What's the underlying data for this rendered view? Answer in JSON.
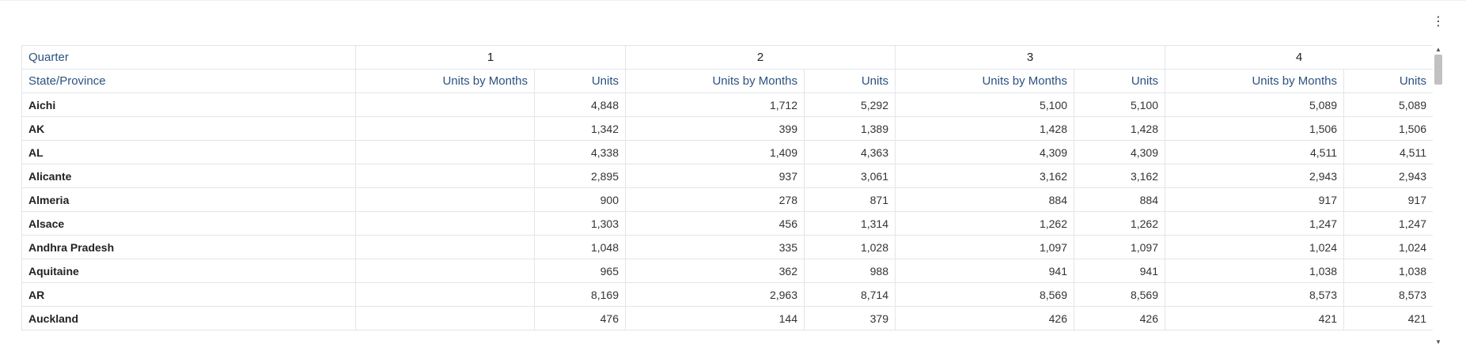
{
  "menu": {
    "icon": "more-vert-icon",
    "glyph": "⋮"
  },
  "table": {
    "row_header_label": "Quarter",
    "state_header_label": "State/Province",
    "quarters": [
      "1",
      "2",
      "3",
      "4"
    ],
    "sub_columns": [
      "Units by Months",
      "Units"
    ],
    "rows": [
      {
        "state": "Aichi",
        "values": [
          "",
          "4,848",
          "1,712",
          "5,292",
          "5,100",
          "5,100",
          "5,089",
          "5,089"
        ]
      },
      {
        "state": "AK",
        "values": [
          "",
          "1,342",
          "399",
          "1,389",
          "1,428",
          "1,428",
          "1,506",
          "1,506"
        ]
      },
      {
        "state": "AL",
        "values": [
          "",
          "4,338",
          "1,409",
          "4,363",
          "4,309",
          "4,309",
          "4,511",
          "4,511"
        ]
      },
      {
        "state": "Alicante",
        "values": [
          "",
          "2,895",
          "937",
          "3,061",
          "3,162",
          "3,162",
          "2,943",
          "2,943"
        ]
      },
      {
        "state": "Almeria",
        "values": [
          "",
          "900",
          "278",
          "871",
          "884",
          "884",
          "917",
          "917"
        ]
      },
      {
        "state": "Alsace",
        "values": [
          "",
          "1,303",
          "456",
          "1,314",
          "1,262",
          "1,262",
          "1,247",
          "1,247"
        ]
      },
      {
        "state": "Andhra Pradesh",
        "values": [
          "",
          "1,048",
          "335",
          "1,028",
          "1,097",
          "1,097",
          "1,024",
          "1,024"
        ]
      },
      {
        "state": "Aquitaine",
        "values": [
          "",
          "965",
          "362",
          "988",
          "941",
          "941",
          "1,038",
          "1,038"
        ]
      },
      {
        "state": "AR",
        "values": [
          "",
          "8,169",
          "2,963",
          "8,714",
          "8,569",
          "8,569",
          "8,573",
          "8,573"
        ]
      },
      {
        "state": "Auckland",
        "values": [
          "",
          "476",
          "144",
          "379",
          "426",
          "426",
          "421",
          "421"
        ]
      }
    ]
  },
  "scrollbar": {
    "up_glyph": "▲",
    "down_glyph": "▼"
  }
}
